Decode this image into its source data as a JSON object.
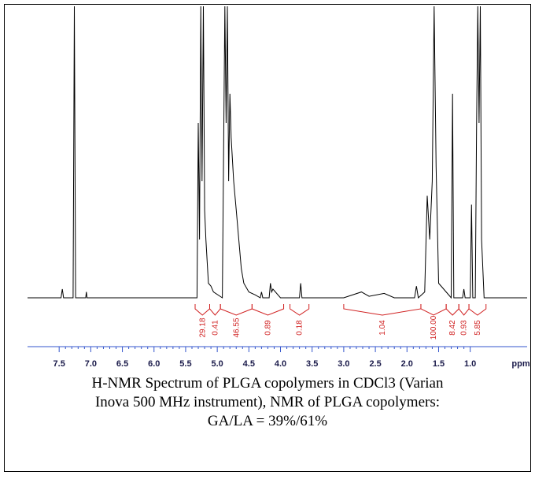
{
  "chart_data": {
    "type": "line",
    "xlabel": "ppm",
    "xlim": [
      8.0,
      0.1
    ],
    "ylim": [
      0,
      100
    ],
    "xticks": [
      7.5,
      {
        "value": 7,
        "label": "7.0"
      },
      6.5,
      {
        "value": 6,
        "label": "6.0"
      },
      5.5,
      {
        "value": 5,
        "label": "5.0"
      },
      4.5,
      {
        "value": 4,
        "label": "4.0"
      },
      3.5,
      {
        "value": 3,
        "label": "3.0"
      },
      2.5,
      {
        "value": 2,
        "label": "2.0"
      },
      1.5,
      {
        "value": 1,
        "label": "1.0"
      }
    ],
    "minor_ticks": true,
    "series": [
      {
        "color": "#000000",
        "x": [
          8.0,
          7.47,
          7.45,
          7.43,
          7.28,
          7.26,
          7.24,
          7.08,
          7.07,
          7.06,
          5.32,
          5.3,
          5.28,
          5.26,
          5.24,
          5.22,
          5.2,
          5.18,
          5.14,
          5.1,
          5.06,
          4.92,
          4.9,
          4.88,
          4.86,
          4.84,
          4.82,
          4.8,
          4.78,
          4.74,
          4.7,
          4.66,
          4.62,
          4.58,
          4.5,
          4.4,
          4.32,
          4.3,
          4.28,
          4.18,
          4.16,
          4.14,
          4.12,
          4.0,
          3.7,
          3.68,
          3.66,
          3.0,
          2.72,
          2.6,
          2.36,
          2.2,
          1.88,
          1.85,
          1.82,
          1.72,
          1.68,
          1.64,
          1.6,
          1.57,
          1.54,
          1.5,
          1.3,
          1.28,
          1.26,
          1.12,
          1.1,
          1.08,
          1.0,
          0.98,
          0.96,
          0.92,
          0.9,
          0.88,
          0.86,
          0.84,
          0.82,
          0.78,
          0.1
        ],
        "values": [
          0,
          0,
          3,
          0,
          0,
          100,
          0,
          0,
          2,
          0,
          0,
          60,
          20,
          100,
          40,
          100,
          30,
          20,
          5,
          4,
          2,
          0,
          50,
          100,
          60,
          100,
          40,
          70,
          55,
          40,
          30,
          20,
          10,
          5,
          2,
          1,
          0,
          2,
          0,
          0,
          5,
          2,
          3,
          0,
          0,
          5,
          0,
          0,
          2,
          0.5,
          1.5,
          0,
          0,
          4,
          0,
          2,
          35,
          20,
          40,
          100,
          45,
          5,
          0,
          70,
          0,
          0,
          3,
          0,
          0,
          32,
          0,
          0,
          58,
          100,
          60,
          100,
          20,
          0,
          0
        ]
      }
    ],
    "integrals": {
      "color": "#d02020",
      "values": [
        29.18,
        0.41,
        46.55,
        0.89,
        0.18,
        1.04,
        100,
        8.42,
        0.93,
        5.85
      ],
      "value_labels": [
        "29.18",
        "0.41",
        "46.55",
        "0.89",
        "0.18",
        "1.04",
        "100.00",
        "8.42",
        "0.93",
        "5.85"
      ],
      "ranges": [
        [
          5.35,
          5.12
        ],
        [
          5.12,
          4.95
        ],
        [
          4.95,
          4.45
        ],
        [
          4.45,
          3.95
        ],
        [
          3.85,
          3.55
        ],
        [
          3.0,
          1.78
        ],
        [
          1.78,
          1.38
        ],
        [
          1.38,
          1.18
        ],
        [
          1.18,
          1.02
        ],
        [
          1.02,
          0.75
        ]
      ]
    },
    "caption": [
      "H-NMR Spectrum of PLGA copolymers in CDCl3 (Varian",
      "Inova 500 MHz instrument), NMR of PLGA copolymers:",
      "GA/LA = 39%/61%"
    ]
  }
}
